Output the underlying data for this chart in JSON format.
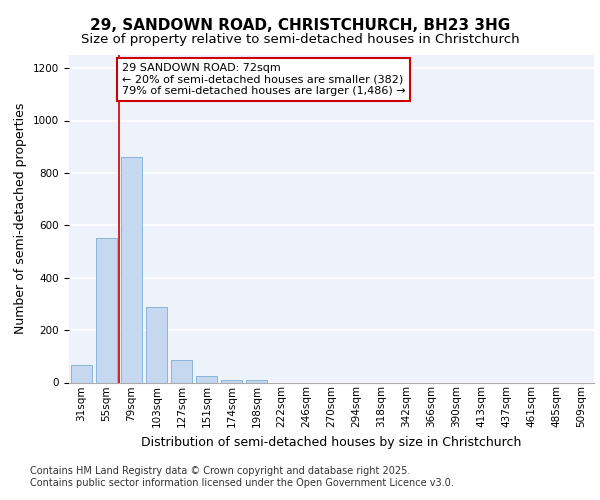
{
  "title_line1": "29, SANDOWN ROAD, CHRISTCHURCH, BH23 3HG",
  "title_line2": "Size of property relative to semi-detached houses in Christchurch",
  "xlabel": "Distribution of semi-detached houses by size in Christchurch",
  "ylabel": "Number of semi-detached properties",
  "categories": [
    "31sqm",
    "55sqm",
    "79sqm",
    "103sqm",
    "127sqm",
    "151sqm",
    "174sqm",
    "198sqm",
    "222sqm",
    "246sqm",
    "270sqm",
    "294sqm",
    "318sqm",
    "342sqm",
    "366sqm",
    "390sqm",
    "413sqm",
    "437sqm",
    "461sqm",
    "485sqm",
    "509sqm"
  ],
  "values": [
    65,
    550,
    860,
    290,
    85,
    25,
    10,
    10,
    0,
    0,
    0,
    0,
    0,
    0,
    0,
    0,
    0,
    0,
    0,
    0,
    0
  ],
  "bar_color": "#c5d8f0",
  "bar_edge_color": "#7bafd4",
  "property_line_x": 1.5,
  "annotation_text_line1": "29 SANDOWN ROAD: 72sqm",
  "annotation_text_line2": "← 20% of semi-detached houses are smaller (382)",
  "annotation_text_line3": "79% of semi-detached houses are larger (1,486) →",
  "annotation_box_color": "#ffffff",
  "annotation_box_edge_color": "#cc0000",
  "vline_color": "#cc0000",
  "ylim": [
    0,
    1250
  ],
  "yticks": [
    0,
    200,
    400,
    600,
    800,
    1000,
    1200
  ],
  "footer_line1": "Contains HM Land Registry data © Crown copyright and database right 2025.",
  "footer_line2": "Contains public sector information licensed under the Open Government Licence v3.0.",
  "bg_color": "#eef2fb",
  "grid_color": "#ffffff",
  "title_fontsize": 11,
  "subtitle_fontsize": 9.5,
  "axis_label_fontsize": 9,
  "tick_fontsize": 7.5,
  "footer_fontsize": 7,
  "annot_fontsize": 8
}
